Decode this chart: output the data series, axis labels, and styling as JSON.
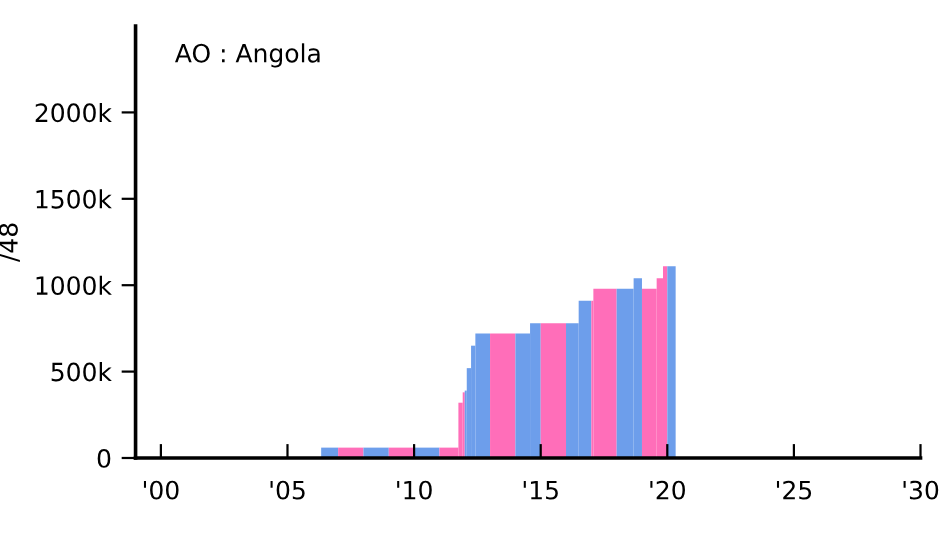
{
  "chart_data": {
    "type": "histogram",
    "title": "AO : Angola",
    "ylabel": "/48",
    "bins": [
      2006.33,
      2007,
      2008,
      2009,
      2010,
      2011,
      2011.75,
      2011.92,
      2012,
      2012.08,
      2012.25,
      2012.42,
      2013,
      2014,
      2014.58,
      2015,
      2016,
      2016.5,
      2017,
      2017.08,
      2018,
      2018.67,
      2019,
      2019.58,
      2019.83,
      2020,
      2020.33
    ],
    "values": [
      60000,
      60000,
      60000,
      60000,
      60000,
      60000,
      320000,
      380000,
      390000,
      520000,
      650000,
      720000,
      720000,
      720000,
      780000,
      780000,
      780000,
      910000,
      910000,
      980000,
      980000,
      1040000,
      980000,
      1040000,
      1110000,
      1110000
    ],
    "colors": [
      "#6d9eeb",
      "#ff6eb9",
      "#6d9eeb",
      "#ff6eb9",
      "#6d9eeb",
      "#ff6eb9",
      "#ff6eb9",
      "#ff6eb9",
      "#6d9eeb",
      "#6d9eeb",
      "#6d9eeb",
      "#6d9eeb",
      "#ff6eb9",
      "#6d9eeb",
      "#6d9eeb",
      "#ff6eb9",
      "#6d9eeb",
      "#6d9eeb",
      "#ff6eb9",
      "#ff6eb9",
      "#6d9eeb",
      "#6d9eeb",
      "#ff6eb9",
      "#ff6eb9",
      "#ff6eb9",
      "#6d9eeb"
    ],
    "xlim": [
      1999,
      2030
    ],
    "xticks": [
      {
        "value": 2000,
        "label": "'00"
      },
      {
        "value": 2005,
        "label": "'05"
      },
      {
        "value": 2010,
        "label": "'10"
      },
      {
        "value": 2015,
        "label": "'15"
      },
      {
        "value": 2020,
        "label": "'20"
      },
      {
        "value": 2025,
        "label": "'25"
      },
      {
        "value": 2030,
        "label": "'30"
      }
    ],
    "ylim": [
      0,
      2500000
    ],
    "yticks": [
      0,
      {
        "value": 500000,
        "label": "500k"
      },
      {
        "value": 1000000,
        "label": "1000k"
      },
      {
        "value": 1500000,
        "label": "1500k"
      },
      {
        "value": 2000000,
        "label": "2000k"
      }
    ],
    "grid": false
  }
}
